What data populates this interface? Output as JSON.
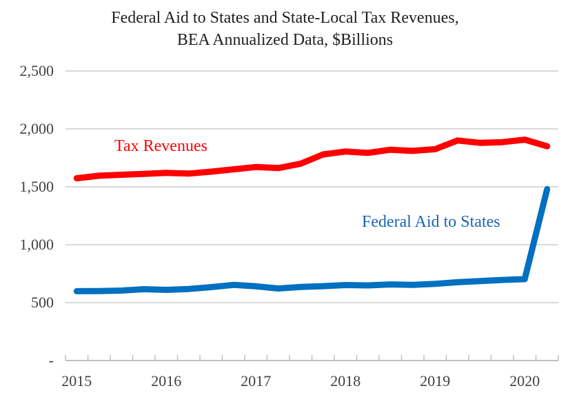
{
  "chart": {
    "title_line1": "Federal Aid to States and State-Local Tax Revenues,",
    "title_line2": "BEA Annualized Data, $Billions"
  },
  "chart_data": {
    "type": "line",
    "title": "Federal Aid to States and State-Local Tax Revenues, BEA Annualized Data, $Billions",
    "categories": [
      "2015Q1",
      "2015Q2",
      "2015Q3",
      "2015Q4",
      "2016Q1",
      "2016Q2",
      "2016Q3",
      "2016Q4",
      "2017Q1",
      "2017Q2",
      "2017Q3",
      "2017Q4",
      "2018Q1",
      "2018Q2",
      "2018Q3",
      "2018Q4",
      "2019Q1",
      "2019Q2",
      "2019Q3",
      "2019Q4",
      "2020Q1",
      "2020Q2"
    ],
    "series": [
      {
        "name": "Tax Revenues",
        "color": "#FF0000",
        "label_color": "#FF0000",
        "values": [
          1574,
          1596,
          1604,
          1612,
          1620,
          1614,
          1631,
          1651,
          1671,
          1662,
          1700,
          1780,
          1805,
          1793,
          1820,
          1810,
          1825,
          1900,
          1880,
          1886,
          1907,
          1850
        ]
      },
      {
        "name": "Federal Aid to States",
        "color": "#0070C0",
        "label_color": "#1A63B5",
        "values": [
          599,
          600,
          604,
          616,
          610,
          618,
          634,
          653,
          641,
          622,
          636,
          642,
          652,
          649,
          657,
          653,
          662,
          676,
          686,
          696,
          703,
          1480
        ]
      }
    ],
    "ylim": [
      0,
      2500
    ],
    "y_ticks": [
      {
        "value": 2500,
        "label": "2,500"
      },
      {
        "value": 2000,
        "label": "2,000"
      },
      {
        "value": 1500,
        "label": "1,500"
      },
      {
        "value": 1000,
        "label": "1,000"
      },
      {
        "value": 500,
        "label": "500"
      },
      {
        "value": 0,
        "label": "-"
      }
    ],
    "x_year_labels": [
      "2015",
      "2016",
      "2017",
      "2018",
      "2019",
      "2020"
    ],
    "grid": "horizontal",
    "legend": "inline-labels"
  },
  "colors": {
    "gridline": "#D9D9D9",
    "axis": "#BFBFBF",
    "axis_text": "#404040",
    "title_text": "#1F1F1F"
  }
}
